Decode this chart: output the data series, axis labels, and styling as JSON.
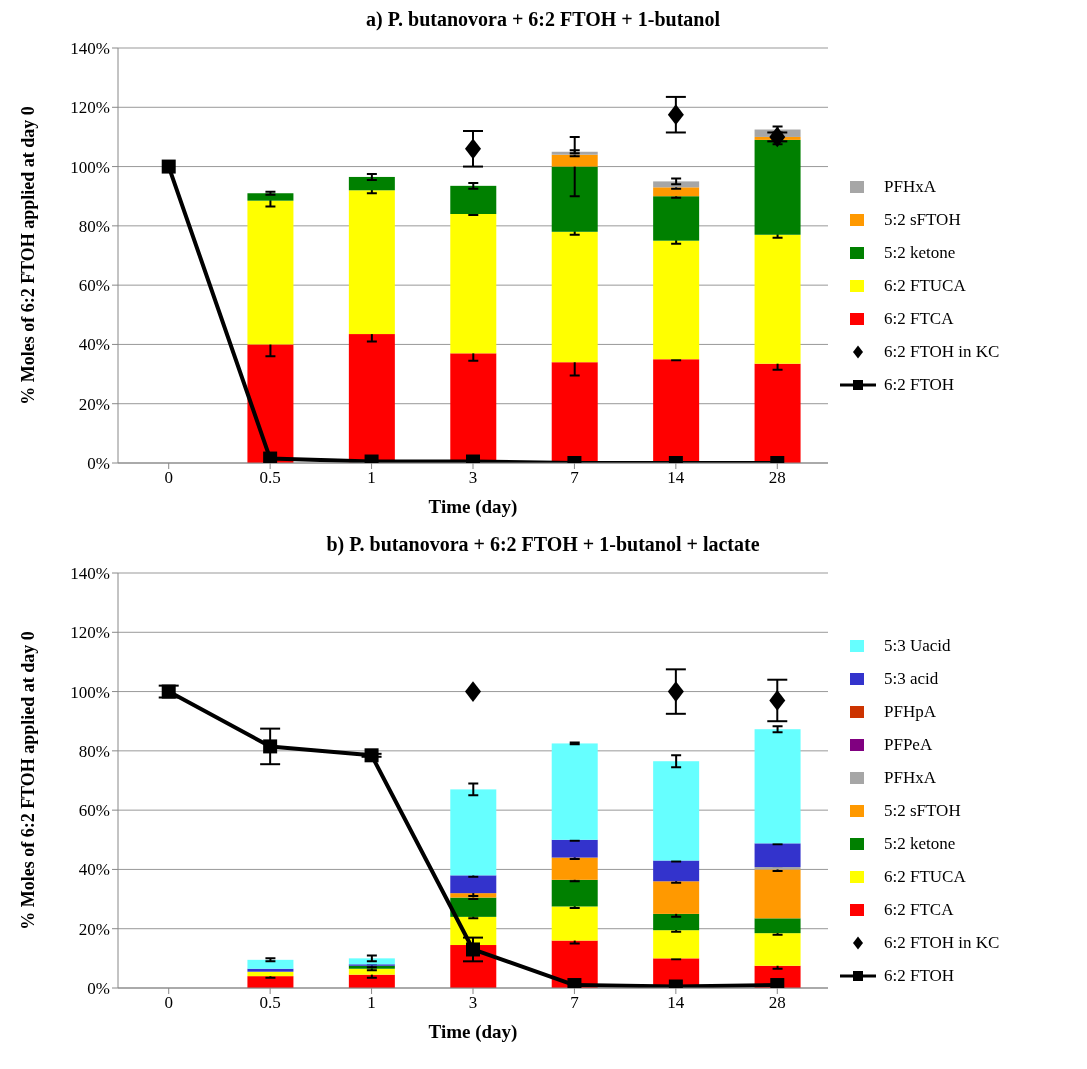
{
  "chart_data": [
    {
      "type": "bar",
      "title": "a) P. butanovora + 6:2 FTOH + 1-butanol",
      "xlabel": "Time (day)",
      "ylabel": "% Moles of 6:2 FTOH applied at day 0",
      "categories": [
        "0",
        "0.5",
        "1",
        "3",
        "7",
        "14",
        "28"
      ],
      "stacked": true,
      "grid": "y",
      "legend": "right",
      "ylim": [
        0,
        140
      ],
      "yticks": [
        {
          "value": 0,
          "label": "0%"
        },
        {
          "value": 20,
          "label": "20%"
        },
        {
          "value": 40,
          "label": "40%"
        },
        {
          "value": 60,
          "label": "60%"
        },
        {
          "value": 80,
          "label": "80%"
        },
        {
          "value": 100,
          "label": "100%"
        },
        {
          "value": 120,
          "label": "120%"
        },
        {
          "value": 140,
          "label": "140%"
        }
      ],
      "series": [
        {
          "name": "6:2 FTCA",
          "color": "#ff0000",
          "values": [
            0,
            40,
            43.5,
            37,
            34,
            35,
            33.5
          ],
          "errors": [
            null,
            4,
            2.5,
            2.5,
            4.5,
            0.3,
            2
          ]
        },
        {
          "name": "6:2 FTUCA",
          "color": "#ffff00",
          "values": [
            0,
            48.5,
            48.5,
            47,
            44,
            40,
            43.5
          ],
          "errors": [
            null,
            2,
            1,
            0.3,
            1,
            1,
            1
          ]
        },
        {
          "name": "5:2 ketone",
          "color": "#008000",
          "values": [
            0,
            2.5,
            4.5,
            9.5,
            22,
            15,
            32
          ],
          "errors": [
            null,
            0.5,
            1,
            1,
            10,
            0.5,
            1.5
          ]
        },
        {
          "name": "5:2 sFTOH",
          "color": "#ff9900",
          "values": [
            0,
            0,
            0,
            0,
            4,
            3,
            1
          ],
          "errors": [
            null,
            null,
            null,
            null,
            0.5,
            0.5,
            null
          ]
        },
        {
          "name": "PFHxA",
          "color": "#a6a6a6",
          "values": [
            0,
            0,
            0,
            0,
            1,
            2,
            2.5
          ],
          "errors": [
            null,
            null,
            null,
            null,
            0.5,
            1,
            1
          ]
        },
        {
          "name": "6:2 FTOH in KC",
          "type": "scatter",
          "marker": "diamond",
          "color": "#000000",
          "values": [
            null,
            null,
            null,
            106,
            null,
            117.5,
            110
          ],
          "errors": [
            null,
            null,
            null,
            6,
            null,
            6,
            1.5
          ]
        },
        {
          "name": "6:2 FTOH",
          "type": "line",
          "marker": "square",
          "color": "#000000",
          "values": [
            100,
            1.5,
            0.5,
            0.5,
            0,
            0,
            0
          ]
        }
      ]
    },
    {
      "type": "bar",
      "title": "b) P. butanovora + 6:2 FTOH + 1-butanol + lactate",
      "xlabel": "Time (day)",
      "ylabel": "% Moles of 6:2 FTOH applied at day 0",
      "categories": [
        "0",
        "0.5",
        "1",
        "3",
        "7",
        "14",
        "28"
      ],
      "stacked": true,
      "grid": "y",
      "legend": "right",
      "ylim": [
        0,
        140
      ],
      "yticks": [
        {
          "value": 0,
          "label": "0%"
        },
        {
          "value": 20,
          "label": "20%"
        },
        {
          "value": 40,
          "label": "40%"
        },
        {
          "value": 60,
          "label": "60%"
        },
        {
          "value": 80,
          "label": "80%"
        },
        {
          "value": 100,
          "label": "100%"
        },
        {
          "value": 120,
          "label": "120%"
        },
        {
          "value": 140,
          "label": "140%"
        }
      ],
      "series": [
        {
          "name": "6:2 FTCA",
          "color": "#ff0000",
          "values": [
            0,
            4,
            4.5,
            14.5,
            16,
            10,
            7.5
          ],
          "errors": [
            null,
            0.5,
            1,
            1,
            1,
            0.3,
            1
          ]
        },
        {
          "name": "6:2 FTUCA",
          "color": "#ffff00",
          "values": [
            0,
            1.5,
            2,
            9.5,
            11.5,
            9.5,
            11
          ],
          "errors": [
            null,
            null,
            0.5,
            0.5,
            0.5,
            0.5,
            0.5
          ]
        },
        {
          "name": "5:2 ketone",
          "color": "#008000",
          "values": [
            0,
            0,
            1,
            6.5,
            9,
            5.5,
            5
          ],
          "errors": [
            null,
            null,
            0.5,
            0.5,
            0.5,
            1,
            null
          ]
        },
        {
          "name": "5:2 sFTOH",
          "color": "#ff9900",
          "values": [
            0,
            0,
            0,
            1.5,
            7.5,
            11,
            16.5
          ],
          "errors": [
            null,
            null,
            null,
            1,
            0.5,
            0.5,
            0.5
          ]
        },
        {
          "name": "PFHxA",
          "color": "#a6a6a6",
          "values": [
            0,
            0,
            0,
            0,
            0,
            0,
            0.8
          ]
        },
        {
          "name": "PFPeA",
          "color": "#800080",
          "values": [
            0,
            0,
            0,
            0,
            0,
            0,
            0
          ]
        },
        {
          "name": "PFHpA",
          "color": "#cc3300",
          "values": [
            0,
            0,
            0,
            0,
            0,
            0,
            0
          ]
        },
        {
          "name": "5:3 acid",
          "color": "#3333cc",
          "values": [
            0,
            1,
            0.5,
            6,
            6,
            7,
            8
          ],
          "errors": [
            null,
            null,
            null,
            0.5,
            0.3,
            0.3,
            0.3
          ]
        },
        {
          "name": "5:3 Uacid",
          "color": "#66ffff",
          "values": [
            0,
            3,
            2,
            29,
            32.5,
            33.5,
            38.5
          ],
          "errors": [
            null,
            0.5,
            1,
            2,
            0.3,
            2,
            1
          ]
        },
        {
          "name": "6:2 FTOH in KC",
          "type": "scatter",
          "marker": "diamond",
          "color": "#000000",
          "values": [
            null,
            null,
            null,
            100,
            null,
            100,
            97
          ],
          "errors": [
            null,
            null,
            null,
            null,
            null,
            7.5,
            7
          ]
        },
        {
          "name": "6:2 FTOH",
          "type": "line",
          "marker": "square",
          "color": "#000000",
          "values": [
            100,
            81.5,
            78.5,
            13,
            1,
            0.5,
            1
          ],
          "errors": [
            2,
            6,
            0.5,
            4,
            null,
            null,
            null
          ]
        }
      ]
    }
  ]
}
